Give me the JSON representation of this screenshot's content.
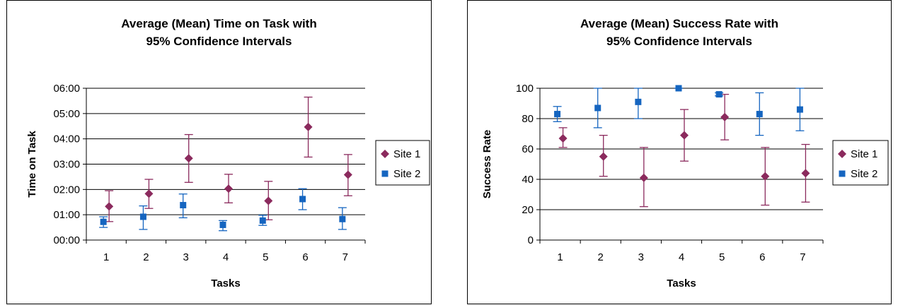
{
  "chart_data": [
    {
      "type": "scatter",
      "title_line1": "Average (Mean) Time on Task with",
      "title_line2": "95% Confidence Intervals",
      "xlabel": "Tasks",
      "ylabel": "Time on Task",
      "categories": [
        "1",
        "2",
        "3",
        "4",
        "5",
        "6",
        "7"
      ],
      "yticks": [
        "00:00",
        "01:00",
        "02:00",
        "03:00",
        "04:00",
        "05:00",
        "06:00"
      ],
      "ylim": [
        0,
        6
      ],
      "legend_position": "right",
      "series": [
        {
          "name": "Site 1",
          "color": "#8B2A5D",
          "marker": "diamond",
          "values": [
            1.33,
            1.83,
            3.23,
            2.03,
            1.55,
            4.47,
            2.58
          ],
          "ci_low": [
            0.73,
            1.25,
            2.28,
            1.47,
            0.8,
            3.28,
            1.75
          ],
          "ci_high": [
            1.95,
            2.4,
            4.17,
            2.6,
            2.32,
            5.65,
            3.38
          ]
        },
        {
          "name": "Site 2",
          "color": "#1565C0",
          "marker": "square",
          "values": [
            0.72,
            0.92,
            1.38,
            0.6,
            0.77,
            1.62,
            0.83
          ],
          "ci_low": [
            0.5,
            0.42,
            0.88,
            0.37,
            0.58,
            1.2,
            0.42
          ],
          "ci_high": [
            0.92,
            1.35,
            1.82,
            0.77,
            0.98,
            2.03,
            1.28
          ]
        }
      ]
    },
    {
      "type": "scatter",
      "title_line1": "Average (Mean) Success Rate with",
      "title_line2": "95% Confidence Intervals",
      "xlabel": "Tasks",
      "ylabel": "Success Rate",
      "categories": [
        "1",
        "2",
        "3",
        "4",
        "5",
        "6",
        "7"
      ],
      "yticks": [
        "0",
        "20",
        "40",
        "60",
        "80",
        "100"
      ],
      "ylim": [
        0,
        100
      ],
      "legend_position": "right",
      "series": [
        {
          "name": "Site 1",
          "color": "#8B2A5D",
          "marker": "diamond",
          "values": [
            67,
            55,
            41,
            69,
            81,
            42,
            44
          ],
          "ci_low": [
            61,
            42,
            22,
            52,
            66,
            23,
            25
          ],
          "ci_high": [
            74,
            69,
            61,
            86,
            96,
            61,
            63
          ]
        },
        {
          "name": "Site 2",
          "color": "#1565C0",
          "marker": "square",
          "values": [
            83,
            87,
            91,
            100,
            96,
            83,
            86
          ],
          "ci_low": [
            78,
            74,
            80,
            100,
            95,
            69,
            72
          ],
          "ci_high": [
            88,
            100,
            100,
            100,
            97,
            97,
            100
          ]
        }
      ]
    }
  ]
}
